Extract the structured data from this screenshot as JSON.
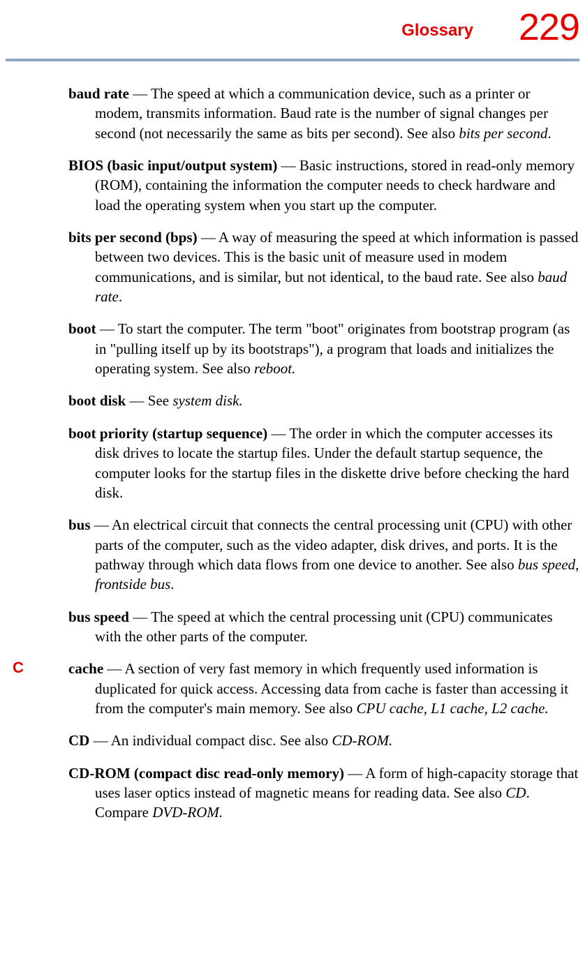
{
  "header": {
    "title": "Glossary",
    "page_number": "229",
    "title_color": "#e60000",
    "divider_color": "#8da8c4"
  },
  "sections": {
    "C_letter": "C"
  },
  "entries": {
    "baud_rate": {
      "term": "baud rate",
      "sep": " — ",
      "def": "The speed at which a communication device, such as a printer or modem, transmits information. Baud rate is the number of signal changes per second (not necessarily the same as bits per second). See also ",
      "ref1": "bits per second",
      "tail": "."
    },
    "bios": {
      "term": "BIOS (basic input/output system)",
      "sep": " — ",
      "def": "Basic instructions, stored in read-only memory (ROM), containing the information the computer needs to check hardware and load the operating system when you start up the computer."
    },
    "bps": {
      "term": "bits per second (bps)",
      "sep": " — ",
      "def": "A way of measuring the speed at which information is passed between two devices. This is the basic unit of measure used in modem communications, and is similar, but not identical, to the baud rate. See also ",
      "ref1": "baud rate",
      "tail": "."
    },
    "boot": {
      "term": "boot",
      "sep": " — ",
      "def": "To start the computer. The term \"boot\" originates from bootstrap program (as in \"pulling itself up by its bootstraps\"), a program that loads and initializes the operating system. See also ",
      "ref1": "reboot.",
      "tail": ""
    },
    "boot_disk": {
      "term": "boot disk",
      "sep": " — ",
      "def": "See ",
      "ref1": "system disk.",
      "tail": ""
    },
    "boot_priority": {
      "term": "boot priority (startup sequence)",
      "sep": " — ",
      "def": "The order in which the computer accesses its disk drives to locate the startup files. Under the default startup sequence, the computer looks for the startup files in the diskette drive before checking the hard disk."
    },
    "bus": {
      "term": "bus",
      "sep": " — ",
      "def": "An electrical circuit that connects the central processing unit (CPU) with other parts of the computer, such as the video adapter, disk drives, and ports. It is the pathway through which data flows from one device to another. See also ",
      "ref1": "bus speed",
      "mid": ", ",
      "ref2": "frontside bus",
      "tail": "."
    },
    "bus_speed": {
      "term": "bus speed",
      "sep": " — ",
      "def": "The speed at which the central processing unit (CPU) communicates with the other parts of the computer."
    },
    "cache": {
      "term": "cache",
      "sep": " — ",
      "def": "A section of very fast memory in which frequently used information is duplicated for quick access. Accessing data from cache is faster than accessing it from the computer's main memory. See also ",
      "ref1": "CPU cache, L1 cache, L2 cache.",
      "tail": ""
    },
    "cd": {
      "term": "CD",
      "sep": " — ",
      "def": "An individual compact disc. See also ",
      "ref1": "CD-ROM.",
      "tail": ""
    },
    "cdrom": {
      "term": "CD-ROM (compact disc read-only memory)",
      "sep": " — ",
      "def": "A form of high-capacity storage that uses laser optics instead of magnetic means for reading data. See also ",
      "ref1": "CD",
      "mid": ". Compare ",
      "ref2": "DVD-ROM.",
      "tail": ""
    }
  }
}
